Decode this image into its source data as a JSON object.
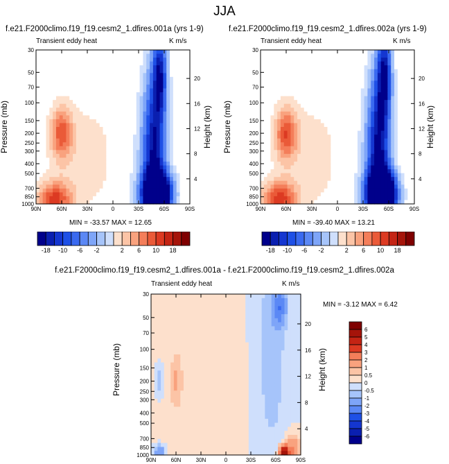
{
  "figure": {
    "title": "JJA",
    "panels": [
      {
        "title": "f.e21.F2000climo.f19_f19.cesm2_1.dfires.001a (yrs 1-9)",
        "left_label": "Transient eddy heat",
        "right_label": "K m/s",
        "min_max": "MIN = -33.57  MAX = 12.65"
      },
      {
        "title": "f.e21.F2000climo.f19_f19.cesm2_1.dfires.002a (yrs 1-9)",
        "left_label": "Transient eddy heat",
        "right_label": "K m/s",
        "min_max": "MIN = -39.40  MAX = 13.21"
      },
      {
        "title": "f.e21.F2000climo.f19_f19.cesm2_1.dfires.001a - f.e21.F2000climo.f19_f19.cesm2_1.dfires.002a",
        "left_label": "Transient eddy heat",
        "right_label": "K m/s",
        "min_max": "MIN = -3.12  MAX =  6.42"
      }
    ],
    "y_label": "Pressure (mb)",
    "y2_label": "Height (km)",
    "colors": {
      "neg": [
        "#00008b",
        "#0a1fb0",
        "#1436d0",
        "#1e50e6",
        "#3a6af0",
        "#5b88f5",
        "#7ea5f8",
        "#a6c4fa",
        "#cfdffc"
      ],
      "pos": [
        "#fde0cc",
        "#fcc4a6",
        "#f9a27e",
        "#f47e5a",
        "#ea5a38",
        "#dc3a22",
        "#c42414",
        "#a5140a",
        "#7f0000"
      ],
      "white": "#ffffff"
    },
    "colorbar_h_labels": [
      "-18",
      "-10",
      "-6",
      "-2",
      "2",
      "6",
      "10",
      "18"
    ],
    "colorbar_v_labels": [
      "6",
      "5",
      "4",
      "3",
      "2",
      "1",
      "0.5",
      "0",
      "-0.5",
      "-1",
      "-2",
      "-3",
      "-4",
      "-5",
      "-6"
    ]
  },
  "chart_data": [
    {
      "type": "heatmap",
      "title": "f.e21.F2000climo.f19_f19.cesm2_1.dfires.001a (yrs 1-9)",
      "xlabel": "",
      "ylabel": "Pressure (mb)",
      "y2label": "Height (km)",
      "x_ticks": [
        "90N",
        "60N",
        "30N",
        "0",
        "30S",
        "60S",
        "90S"
      ],
      "y_ticks": [
        "30",
        "50",
        "70",
        "100",
        "150",
        "200",
        "250",
        "300",
        "400",
        "500",
        "700",
        "850",
        "1000"
      ],
      "y2_ticks": [
        "20",
        "16",
        "12",
        "8",
        "4"
      ],
      "x_range": [
        90,
        -90
      ],
      "y_range": [
        30,
        1000
      ],
      "y_scale": "log",
      "min": -33.57,
      "max": 12.65,
      "levels": [
        -18,
        -16,
        -14,
        -12,
        -10,
        -8,
        -6,
        -4,
        -2,
        0,
        2,
        4,
        6,
        8,
        10,
        12,
        14,
        16,
        18
      ],
      "features": [
        {
          "lat": 60,
          "p": 200,
          "value": 10,
          "sigma_lat": 9,
          "sigma_logp": 0.18
        },
        {
          "lat": 68,
          "p": 900,
          "value": 12,
          "sigma_lat": 14,
          "sigma_logp": 0.12
        },
        {
          "lat": 30,
          "p": 350,
          "value": 3,
          "sigma_lat": 35,
          "sigma_logp": 0.45
        },
        {
          "lat": -52,
          "p": 800,
          "value": -30,
          "sigma_lat": 12,
          "sigma_logp": 0.15
        },
        {
          "lat": -48,
          "p": 300,
          "value": -18,
          "sigma_lat": 10,
          "sigma_logp": 0.55
        },
        {
          "lat": -55,
          "p": 50,
          "value": -14,
          "sigma_lat": 6,
          "sigma_logp": 0.3
        },
        {
          "lat": -20,
          "p": 500,
          "value": -2,
          "sigma_lat": 15,
          "sigma_logp": 0.5
        }
      ]
    },
    {
      "type": "heatmap",
      "title": "f.e21.F2000climo.f19_f19.cesm2_1.dfires.002a (yrs 1-9)",
      "xlabel": "",
      "ylabel": "Pressure (mb)",
      "y2label": "Height (km)",
      "x_ticks": [
        "90N",
        "60N",
        "30N",
        "0",
        "30S",
        "60S",
        "90S"
      ],
      "y_ticks": [
        "30",
        "50",
        "70",
        "100",
        "150",
        "200",
        "250",
        "300",
        "400",
        "500",
        "700",
        "850",
        "1000"
      ],
      "y2_ticks": [
        "20",
        "16",
        "12",
        "8",
        "4"
      ],
      "x_range": [
        90,
        -90
      ],
      "y_range": [
        30,
        1000
      ],
      "y_scale": "log",
      "min": -39.4,
      "max": 13.21,
      "levels": [
        -18,
        -16,
        -14,
        -12,
        -10,
        -8,
        -6,
        -4,
        -2,
        0,
        2,
        4,
        6,
        8,
        10,
        12,
        14,
        16,
        18
      ],
      "features": [
        {
          "lat": 60,
          "p": 200,
          "value": 10.5,
          "sigma_lat": 9,
          "sigma_logp": 0.18
        },
        {
          "lat": 68,
          "p": 900,
          "value": 12.5,
          "sigma_lat": 14,
          "sigma_logp": 0.12
        },
        {
          "lat": 30,
          "p": 350,
          "value": 3,
          "sigma_lat": 35,
          "sigma_logp": 0.45
        },
        {
          "lat": -52,
          "p": 800,
          "value": -34,
          "sigma_lat": 12,
          "sigma_logp": 0.15
        },
        {
          "lat": -48,
          "p": 300,
          "value": -19,
          "sigma_lat": 10,
          "sigma_logp": 0.55
        },
        {
          "lat": -55,
          "p": 50,
          "value": -15,
          "sigma_lat": 6,
          "sigma_logp": 0.3
        },
        {
          "lat": -20,
          "p": 500,
          "value": -2,
          "sigma_lat": 15,
          "sigma_logp": 0.5
        }
      ]
    },
    {
      "type": "heatmap",
      "title": "f.e21.F2000climo.f19_f19.cesm2_1.dfires.001a - f.e21.F2000climo.f19_f19.cesm2_1.dfires.002a",
      "xlabel": "",
      "ylabel": "Pressure (mb)",
      "y2label": "Height (km)",
      "x_ticks": [
        "90N",
        "60N",
        "30N",
        "0",
        "30S",
        "60S",
        "90S"
      ],
      "y_ticks": [
        "30",
        "50",
        "70",
        "100",
        "150",
        "200",
        "250",
        "300",
        "400",
        "500",
        "700",
        "850",
        "1000"
      ],
      "y2_ticks": [
        "20",
        "16",
        "12",
        "8",
        "4"
      ],
      "x_range": [
        90,
        -90
      ],
      "y_range": [
        30,
        1000
      ],
      "y_scale": "log",
      "min": -3.12,
      "max": 6.42,
      "levels": [
        -6,
        -5,
        -4,
        -3,
        -2,
        -1,
        -0.5,
        0,
        0.5,
        1,
        2,
        3,
        4,
        5,
        6
      ],
      "features": [
        {
          "lat": 40,
          "p": 200,
          "value": 0.4,
          "sigma_lat": 40,
          "sigma_logp": 0.6
        },
        {
          "lat": -55,
          "p": 100,
          "value": -0.8,
          "sigma_lat": 14,
          "sigma_logp": 0.8
        },
        {
          "lat": -65,
          "p": 40,
          "value": -2.5,
          "sigma_lat": 5,
          "sigma_logp": 0.12
        },
        {
          "lat": -70,
          "p": 950,
          "value": 6,
          "sigma_lat": 4,
          "sigma_logp": 0.05
        },
        {
          "lat": -80,
          "p": 900,
          "value": 2,
          "sigma_lat": 6,
          "sigma_logp": 0.1
        },
        {
          "lat": 80,
          "p": 950,
          "value": -2,
          "sigma_lat": 5,
          "sigma_logp": 0.05
        },
        {
          "lat": 80,
          "p": 200,
          "value": -1,
          "sigma_lat": 4,
          "sigma_logp": 0.12
        },
        {
          "lat": 60,
          "p": 200,
          "value": 0.8,
          "sigma_lat": 4,
          "sigma_logp": 0.15
        }
      ]
    }
  ]
}
